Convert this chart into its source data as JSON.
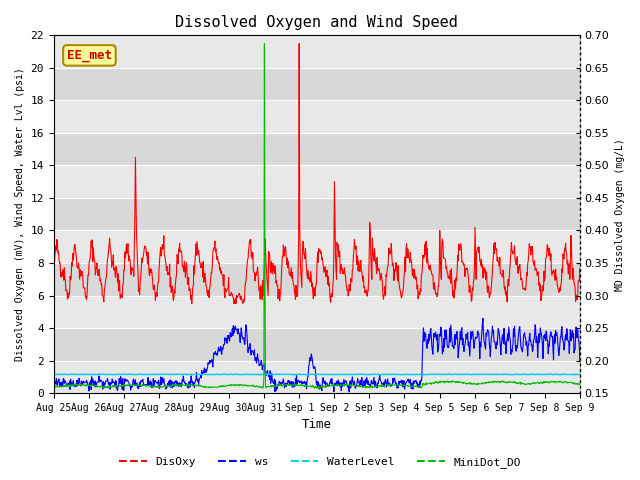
{
  "title": "Dissolved Oxygen and Wind Speed",
  "ylabel_left": "Dissolved Oxygen (mV), Wind Speed, Water Lvl (psi)",
  "ylabel_right": "MD Dissolved Oxygen (mg/L)",
  "xlabel": "Time",
  "ylim_left": [
    0,
    22
  ],
  "ylim_right": [
    0.15,
    0.7
  ],
  "yticks_left": [
    0,
    2,
    4,
    6,
    8,
    10,
    12,
    14,
    16,
    18,
    20,
    22
  ],
  "yticks_right": [
    0.15,
    0.2,
    0.25,
    0.3,
    0.35,
    0.4,
    0.45,
    0.5,
    0.55,
    0.6,
    0.65,
    0.7
  ],
  "xtick_labels": [
    "Aug 25",
    "Aug 26",
    "Aug 27",
    "Aug 28",
    "Aug 29",
    "Aug 30",
    "Aug 31",
    "Sep 1",
    "Sep 2",
    "Sep 3",
    "Sep 4",
    "Sep 5",
    "Sep 6",
    "Sep 7",
    "Sep 8",
    "Sep 9"
  ],
  "colors": {
    "DisOxy": "#ff0000",
    "ws": "#0000ff",
    "WaterLevel": "#00ccff",
    "MiniDot_DO": "#00bb00"
  },
  "annotation_text": "EE_met",
  "annotation_fg": "#cc0000",
  "annotation_bg": "#ffff99",
  "annotation_edge": "#aa8800",
  "band_colors": [
    "#e8e8e8",
    "#d8d8d8"
  ],
  "n_points": 1000,
  "figsize": [
    6.4,
    4.8
  ],
  "dpi": 100
}
